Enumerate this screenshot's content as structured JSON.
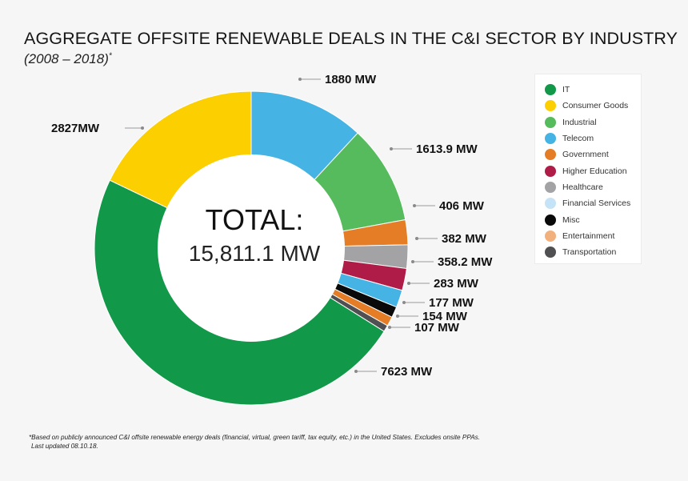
{
  "header": {
    "title": "AGGREGATE OFFSITE RENEWABLE DEALS IN THE C&I SECTOR BY INDUSTRY",
    "subtitle": "(2008 – 2018)",
    "subtitle_mark": "*"
  },
  "center": {
    "label": "TOTAL:",
    "value": "15,811.1 MW"
  },
  "chart_data": {
    "type": "pie",
    "variant": "donut",
    "total": 15811.1,
    "start": "top, clockwise",
    "legend_position": "right",
    "slices": [
      {
        "category": "Telecom",
        "value": 1880,
        "label": "1880 MW",
        "color": "#45b3e3"
      },
      {
        "category": "Industrial",
        "value": 1613.9,
        "label": "1613.9 MW",
        "color": "#56bb5d"
      },
      {
        "category": "Government",
        "value": 406,
        "label": "406 MW",
        "color": "#e57d26"
      },
      {
        "category": "Healthcare",
        "value": 382,
        "label": "382 MW",
        "color": "#a3a3a5"
      },
      {
        "category": "Higher Education",
        "value": 358.2,
        "label": "358.2 MW",
        "color": "#b01c48"
      },
      {
        "category": "Telecom",
        "value": 283,
        "label": "283 MW",
        "color": "#45b3e3"
      },
      {
        "category": "Misc",
        "value": 177,
        "label": "177 MW",
        "color": "#0a0a0a"
      },
      {
        "category": "Government",
        "value": 154,
        "label": "154 MW",
        "color": "#e57d26"
      },
      {
        "category": "Transportation",
        "value": 107,
        "label": "107 MW",
        "color": "#505052"
      },
      {
        "category": "IT",
        "value": 7623,
        "label": "7623 MW",
        "color": "#119849"
      },
      {
        "category": "Consumer Goods",
        "value": 2827,
        "label": "2827MW",
        "color": "#fbcf00"
      }
    ]
  },
  "legend": {
    "items": [
      {
        "label": "IT",
        "color": "#119849"
      },
      {
        "label": "Consumer Goods",
        "color": "#fbcf00"
      },
      {
        "label": "Industrial",
        "color": "#56bb5d"
      },
      {
        "label": "Telecom",
        "color": "#45b3e3"
      },
      {
        "label": "Government",
        "color": "#e57d26"
      },
      {
        "label": "Higher Education",
        "color": "#b01c48"
      },
      {
        "label": "Healthcare",
        "color": "#a3a3a5"
      },
      {
        "label": "Financial Services",
        "color": "#c4e3f7"
      },
      {
        "label": "Misc",
        "color": "#0a0a0a"
      },
      {
        "label": "Entertainment",
        "color": "#f2b07c"
      },
      {
        "label": "Transportation",
        "color": "#505052"
      }
    ]
  },
  "footnote": {
    "line1": "*Based on publicly announced C&I offsite renewable energy deals (financial, virtual, green tariff, tax equity, etc.) in the United States. Excludes onsite PPAs.",
    "line2": "Last updated 08.10.18."
  }
}
